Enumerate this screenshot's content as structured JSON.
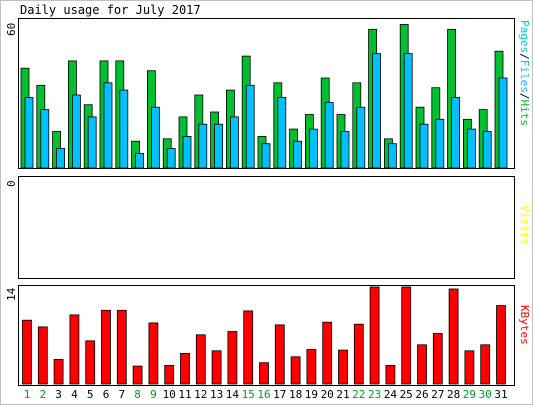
{
  "title": "Daily usage for July 2017",
  "colors": {
    "hits": "#00C030",
    "files": "#00C0FF",
    "pages": "#00D0D0",
    "visits": "#FFFF00",
    "kbytes": "#FF0000",
    "weekend_label": "#00A020",
    "weekday_label": "#000000",
    "frame_bg": "#c0c0c0"
  },
  "chart_data": [
    {
      "type": "bar",
      "title": "Daily usage for July 2017",
      "ylabel_parts": [
        {
          "text": "Pages",
          "color": "#00D0D0"
        },
        {
          "text": "/",
          "color": "#000000"
        },
        {
          "text": "Files",
          "color": "#00C0FF"
        },
        {
          "text": "/",
          "color": "#000000"
        },
        {
          "text": "Hits",
          "color": "#00C030"
        }
      ],
      "ymax_label": "60",
      "ylim": [
        0,
        60
      ],
      "categories": [
        "1",
        "2",
        "3",
        "4",
        "5",
        "6",
        "7",
        "8",
        "9",
        "10",
        "11",
        "12",
        "13",
        "14",
        "15",
        "16",
        "17",
        "18",
        "19",
        "20",
        "21",
        "22",
        "23",
        "24",
        "25",
        "26",
        "27",
        "28",
        "29",
        "30",
        "31"
      ],
      "series": [
        {
          "name": "Hits",
          "color": "#00C030",
          "values": [
            41,
            34,
            15,
            44,
            26,
            44,
            44,
            11,
            40,
            12,
            21,
            30,
            23,
            32,
            46,
            13,
            35,
            16,
            22,
            37,
            22,
            35,
            57,
            12,
            59,
            25,
            33,
            57,
            20,
            24,
            48
          ]
        },
        {
          "name": "Files",
          "color": "#00C0FF",
          "values": [
            29,
            24,
            8,
            30,
            21,
            35,
            32,
            6,
            25,
            8,
            13,
            18,
            18,
            21,
            34,
            10,
            29,
            11,
            16,
            27,
            15,
            25,
            47,
            10,
            47,
            18,
            20,
            29,
            16,
            15,
            37
          ]
        },
        {
          "name": "Pages",
          "color": "#00D0D0",
          "values": [
            0,
            0,
            0,
            0,
            0,
            0,
            0,
            0,
            0,
            0,
            0,
            0,
            0,
            0,
            0,
            0,
            0,
            0,
            0,
            0,
            0,
            0,
            0,
            0,
            0,
            0,
            0,
            0,
            0,
            0,
            0
          ]
        }
      ]
    },
    {
      "type": "bar",
      "ylabel": "Visits",
      "ymax_label": "0",
      "ylim": [
        0,
        1
      ],
      "series": [
        {
          "name": "Visits",
          "color": "#FFFF00",
          "values": [
            0,
            0,
            0,
            0,
            0,
            0,
            0,
            0,
            0,
            0,
            0,
            0,
            0,
            0,
            0,
            0,
            0,
            0,
            0,
            0,
            0,
            0,
            0,
            0,
            0,
            0,
            0,
            0,
            0,
            0,
            0
          ]
        }
      ]
    },
    {
      "type": "bar",
      "ylabel": "KBytes",
      "ymax_label": "14",
      "ylim": [
        0,
        14
      ],
      "series": [
        {
          "name": "KBytes",
          "color": "#FF0000",
          "values": [
            9.6,
            8.6,
            3.7,
            10.4,
            6.5,
            11.1,
            11.1,
            2.7,
            9.2,
            2.8,
            4.6,
            7.4,
            5.0,
            7.9,
            11.0,
            3.2,
            8.9,
            4.1,
            5.2,
            9.3,
            5.1,
            9.0,
            14.6,
            2.8,
            14.6,
            5.9,
            7.6,
            14.3,
            5.0,
            5.9,
            11.8
          ]
        }
      ]
    }
  ],
  "weekend_days": [
    1,
    2,
    8,
    9,
    15,
    16,
    22,
    23,
    29,
    30
  ]
}
